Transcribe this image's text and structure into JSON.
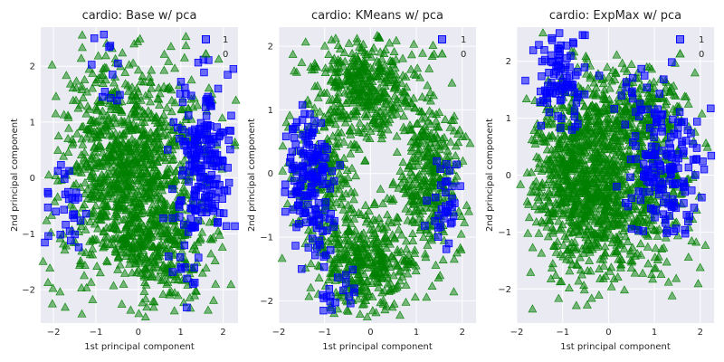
{
  "legend_labels": {
    "s1": "1",
    "s0": "0"
  },
  "colors": {
    "s1": "#0000ff",
    "s0": "#008000",
    "panel_bg": "#eaeaf2",
    "grid": "#ffffff"
  },
  "chart_data": [
    {
      "type": "scatter",
      "title": "cardio: Base w/ pca",
      "xlabel": "1st principal component",
      "ylabel": "2nd principal component",
      "xlim": [
        -2.3,
        2.35
      ],
      "ylim": [
        -2.6,
        2.7
      ],
      "xticks": [
        -2,
        -1,
        0,
        1,
        2
      ],
      "yticks": [
        -2,
        -1,
        0,
        1,
        2
      ],
      "legend_loc": "top-right",
      "series": [
        {
          "name": "1",
          "marker": "square",
          "clusters": [
            {
              "cx": 1.55,
              "cy": 0.25,
              "sx": 0.35,
              "sy": 0.75,
              "n": 190
            },
            {
              "cx": -1.7,
              "cy": -0.55,
              "sx": 0.25,
              "sy": 0.45,
              "n": 30
            },
            {
              "cx": 1.2,
              "cy": -1.7,
              "sx": 0.25,
              "sy": 0.3,
              "n": 15
            },
            {
              "cx": -0.6,
              "cy": 1.8,
              "sx": 0.35,
              "sy": 0.3,
              "n": 12
            }
          ]
        },
        {
          "name": "0",
          "marker": "triangle",
          "clusters": [
            {
              "cx": -0.2,
              "cy": 0.1,
              "sx": 0.85,
              "sy": 1.0,
              "n": 1100
            },
            {
              "cx": 0.6,
              "cy": -1.3,
              "sx": 0.6,
              "sy": 0.5,
              "n": 200
            }
          ]
        }
      ]
    },
    {
      "type": "scatter",
      "title": "cardio: KMeans w/ pca",
      "xlabel": "1st principal component",
      "ylabel": "2nd principal component",
      "xlim": [
        -2.0,
        2.3
      ],
      "ylim": [
        -2.35,
        2.3
      ],
      "xticks": [
        -2,
        -1,
        0,
        1,
        2
      ],
      "yticks": [
        -2,
        -1,
        0,
        1,
        2
      ],
      "legend_loc": "top-right",
      "series": [
        {
          "name": "1",
          "marker": "square",
          "clusters": [
            {
              "cx": -1.35,
              "cy": -0.2,
              "sx": 0.3,
              "sy": 0.5,
              "n": 150
            },
            {
              "cx": 1.65,
              "cy": -0.45,
              "sx": 0.25,
              "sy": 0.35,
              "n": 35
            },
            {
              "cx": -0.8,
              "cy": -1.8,
              "sx": 0.25,
              "sy": 0.2,
              "n": 20
            }
          ]
        },
        {
          "name": "0",
          "marker": "triangle",
          "clusters": [
            {
              "cx": -0.1,
              "cy": 1.35,
              "sx": 0.6,
              "sy": 0.4,
              "n": 420
            },
            {
              "cx": -1.0,
              "cy": -0.1,
              "sx": 0.4,
              "sy": 0.5,
              "n": 200
            },
            {
              "cx": 1.3,
              "cy": -0.1,
              "sx": 0.35,
              "sy": 0.55,
              "n": 320
            },
            {
              "cx": -0.05,
              "cy": -1.35,
              "sx": 0.55,
              "sy": 0.4,
              "n": 400
            }
          ]
        }
      ]
    },
    {
      "type": "scatter",
      "title": "cardio: ExpMax w/ pca",
      "xlabel": "1st principal component",
      "ylabel": "2nd principal component",
      "xlim": [
        -2.0,
        2.3
      ],
      "ylim": [
        -2.6,
        2.6
      ],
      "xticks": [
        -2,
        -1,
        0,
        1,
        2
      ],
      "yticks": [
        -2,
        -1,
        0,
        1,
        2
      ],
      "legend_loc": "top-right",
      "series": [
        {
          "name": "1",
          "marker": "square",
          "clusters": [
            {
              "cx": -1.05,
              "cy": 1.7,
              "sx": 0.25,
              "sy": 0.4,
              "n": 90
            },
            {
              "cx": 1.3,
              "cy": 0.0,
              "sx": 0.4,
              "sy": 0.6,
              "n": 150
            },
            {
              "cx": 0.8,
              "cy": 1.3,
              "sx": 0.35,
              "sy": 0.3,
              "n": 25
            }
          ]
        },
        {
          "name": "0",
          "marker": "triangle",
          "clusters": [
            {
              "cx": -0.6,
              "cy": 0.0,
              "sx": 0.55,
              "sy": 0.85,
              "n": 800
            },
            {
              "cx": 0.5,
              "cy": -0.3,
              "sx": 0.7,
              "sy": 0.8,
              "n": 500
            },
            {
              "cx": 0.6,
              "cy": 1.2,
              "sx": 0.6,
              "sy": 0.35,
              "n": 200
            }
          ]
        }
      ]
    }
  ]
}
